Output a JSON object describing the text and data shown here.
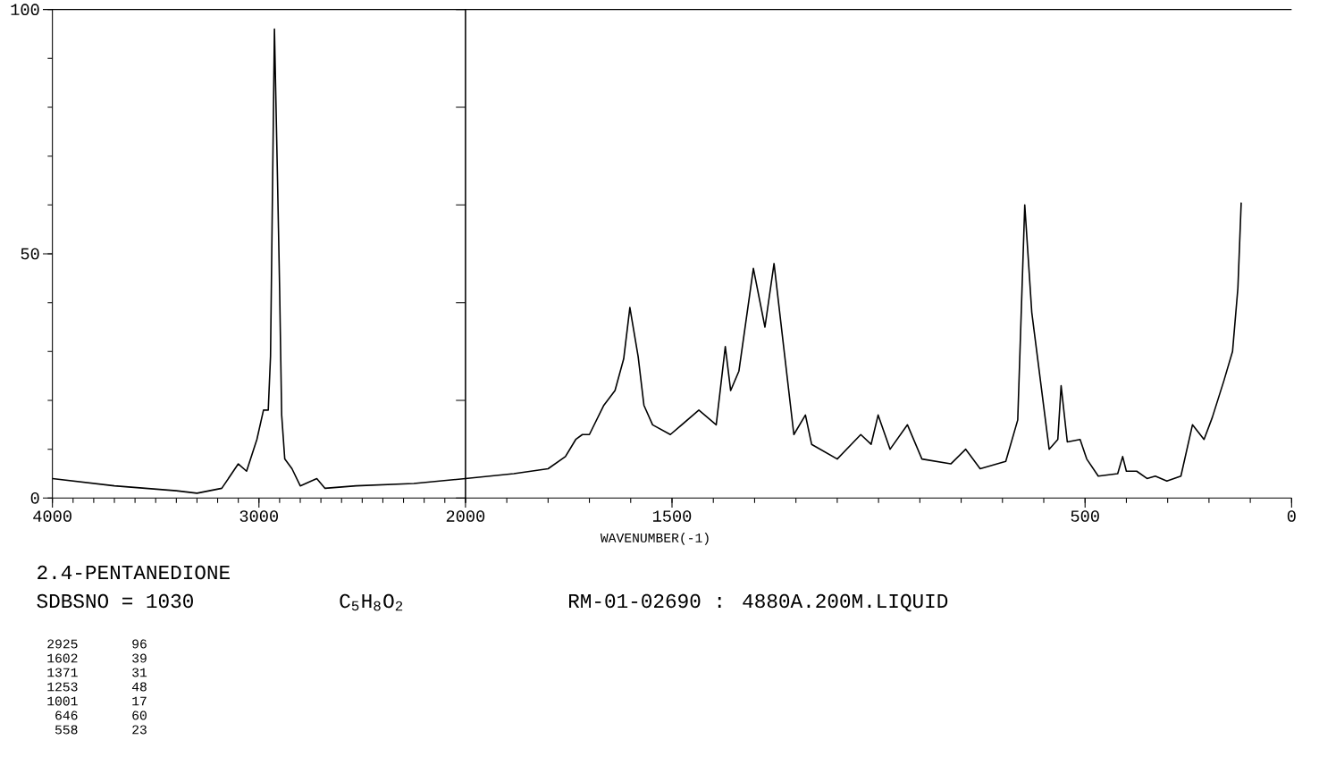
{
  "chart_data": [
    {
      "type": "line",
      "color": "#000000",
      "xlim": [
        4000,
        2000
      ],
      "xticks": [
        4000,
        3000,
        2000
      ],
      "ylim": [
        0,
        100
      ],
      "yticks": [
        0,
        50,
        100
      ],
      "annotations": [
        "2.4-PENTANEDIONE",
        "SDBSNO = 1030",
        "C$_{5}$H$_{8}$O$_{2}$",
        "RM-01-02690 : 4880A.200M.LIQUID",
        "2925",
        "96",
        "1602",
        "39",
        "1371",
        "31",
        "1253",
        "48",
        "1001",
        "17",
        "646",
        "60",
        "558",
        "23"
      ],
      "x": [
        4000,
        3700,
        3400,
        3300,
        3180,
        3100,
        3060,
        3010,
        2978,
        2955,
        2944,
        2925,
        2910,
        2900,
        2890,
        2875,
        2840,
        2800,
        2720,
        2680,
        2530,
        2250,
        2000
      ],
      "values": [
        4,
        2.5,
        1.5,
        1,
        2,
        7,
        5.5,
        12,
        18,
        18,
        29,
        96,
        65,
        43,
        17,
        8,
        6,
        2.5,
        4,
        2,
        2.5,
        3,
        4
      ]
    },
    {
      "type": "line",
      "color": "#000000",
      "xlabel": "WAVENUMBER(-1)",
      "xlim": [
        2000,
        0
      ],
      "xticks": [
        1500,
        500,
        0
      ],
      "ylim": [
        0,
        100
      ],
      "tick_labels": "x",
      "x": [
        2000,
        1883,
        1800,
        1758,
        1733,
        1717,
        1700,
        1665,
        1638,
        1617,
        1602,
        1582,
        1568,
        1547,
        1504,
        1435,
        1393,
        1371,
        1358,
        1338,
        1303,
        1275,
        1253,
        1227,
        1205,
        1177,
        1162,
        1100,
        1043,
        1018,
        1001,
        972,
        930,
        895,
        825,
        789,
        754,
        692,
        663,
        646,
        629,
        587,
        566,
        558,
        543,
        512,
        496,
        468,
        421,
        409,
        400,
        375,
        350,
        330,
        302,
        268,
        240,
        212,
        192,
        164,
        143,
        130,
        122
      ],
      "values": [
        4,
        5,
        6,
        8.5,
        12,
        13,
        13,
        19,
        22,
        28.5,
        39,
        29,
        19,
        15,
        13,
        18,
        15,
        31,
        22,
        26,
        47,
        35,
        48,
        29,
        13,
        17,
        11,
        8,
        13,
        11,
        17,
        10,
        15,
        8,
        7,
        10,
        6,
        7.5,
        16,
        60,
        38,
        10,
        12,
        23,
        11.5,
        12,
        8,
        4.5,
        5,
        8.5,
        5.5,
        5.5,
        4,
        4.5,
        3.5,
        4.5,
        15,
        12,
        16.5,
        24,
        30,
        43,
        60.5
      ]
    }
  ]
}
